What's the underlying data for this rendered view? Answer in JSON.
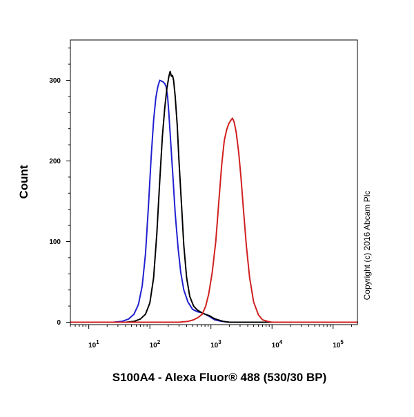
{
  "chart_data": {
    "type": "line",
    "xlabel": "S100A4 - Alexa Fluor® 488 (530/30 BP)",
    "ylabel": "Count",
    "x_scale": "log",
    "xlim": [
      5,
      250000
    ],
    "ylim": [
      -3,
      350
    ],
    "x_ticks": [
      {
        "base": "10",
        "exp": "1",
        "value": 10
      },
      {
        "base": "10",
        "exp": "2",
        "value": 100
      },
      {
        "base": "10",
        "exp": "3",
        "value": 1000
      },
      {
        "base": "10",
        "exp": "4",
        "value": 10000
      },
      {
        "base": "10",
        "exp": "5",
        "value": 100000
      }
    ],
    "y_ticks": [
      {
        "label": "0",
        "value": 0
      },
      {
        "label": "100",
        "value": 100
      },
      {
        "label": "200",
        "value": 200
      },
      {
        "label": "300",
        "value": 300
      }
    ],
    "grid": false,
    "legend": "none",
    "copyright": "Copyright (c) 2016 Abcam Plc",
    "series": [
      {
        "color": "#2020d0",
        "points": [
          [
            5,
            0
          ],
          [
            25,
            0
          ],
          [
            35,
            1
          ],
          [
            45,
            4
          ],
          [
            55,
            10
          ],
          [
            65,
            22
          ],
          [
            75,
            45
          ],
          [
            85,
            85
          ],
          [
            95,
            145
          ],
          [
            105,
            205
          ],
          [
            115,
            250
          ],
          [
            125,
            278
          ],
          [
            135,
            292
          ],
          [
            145,
            300
          ],
          [
            155,
            299
          ],
          [
            165,
            298
          ],
          [
            175,
            296
          ],
          [
            185,
            292
          ],
          [
            195,
            280
          ],
          [
            205,
            258
          ],
          [
            220,
            222
          ],
          [
            240,
            178
          ],
          [
            260,
            135
          ],
          [
            290,
            92
          ],
          [
            320,
            62
          ],
          [
            360,
            40
          ],
          [
            420,
            25
          ],
          [
            500,
            16
          ],
          [
            600,
            13
          ],
          [
            700,
            12
          ],
          [
            800,
            10
          ],
          [
            950,
            7
          ],
          [
            1150,
            3
          ],
          [
            1500,
            1
          ],
          [
            2000,
            0
          ],
          [
            250000,
            0
          ]
        ]
      },
      {
        "color": "#000000",
        "points": [
          [
            5,
            0
          ],
          [
            40,
            0
          ],
          [
            55,
            1
          ],
          [
            70,
            4
          ],
          [
            85,
            10
          ],
          [
            100,
            24
          ],
          [
            115,
            55
          ],
          [
            130,
            110
          ],
          [
            145,
            175
          ],
          [
            160,
            230
          ],
          [
            175,
            265
          ],
          [
            190,
            290
          ],
          [
            205,
            305
          ],
          [
            215,
            311
          ],
          [
            225,
            305
          ],
          [
            235,
            306
          ],
          [
            245,
            300
          ],
          [
            260,
            280
          ],
          [
            280,
            245
          ],
          [
            300,
            200
          ],
          [
            330,
            145
          ],
          [
            360,
            95
          ],
          [
            400,
            55
          ],
          [
            450,
            32
          ],
          [
            520,
            20
          ],
          [
            600,
            15
          ],
          [
            700,
            12
          ],
          [
            800,
            10
          ],
          [
            950,
            8
          ],
          [
            1100,
            5
          ],
          [
            1300,
            3
          ],
          [
            1600,
            1
          ],
          [
            2000,
            0
          ],
          [
            250000,
            0
          ]
        ]
      },
      {
        "color": "#d02020",
        "points": [
          [
            5,
            0
          ],
          [
            300,
            0
          ],
          [
            420,
            1
          ],
          [
            520,
            3
          ],
          [
            620,
            6
          ],
          [
            720,
            10
          ],
          [
            820,
            20
          ],
          [
            920,
            35
          ],
          [
            1050,
            62
          ],
          [
            1200,
            100
          ],
          [
            1350,
            150
          ],
          [
            1500,
            195
          ],
          [
            1650,
            225
          ],
          [
            1800,
            238
          ],
          [
            1950,
            246
          ],
          [
            2100,
            250
          ],
          [
            2250,
            253
          ],
          [
            2400,
            248
          ],
          [
            2600,
            235
          ],
          [
            2850,
            210
          ],
          [
            3100,
            180
          ],
          [
            3400,
            140
          ],
          [
            3800,
            95
          ],
          [
            4300,
            55
          ],
          [
            5000,
            25
          ],
          [
            6000,
            9
          ],
          [
            7000,
            3
          ],
          [
            8500,
            1
          ],
          [
            10000,
            0
          ],
          [
            250000,
            0
          ]
        ]
      }
    ]
  }
}
